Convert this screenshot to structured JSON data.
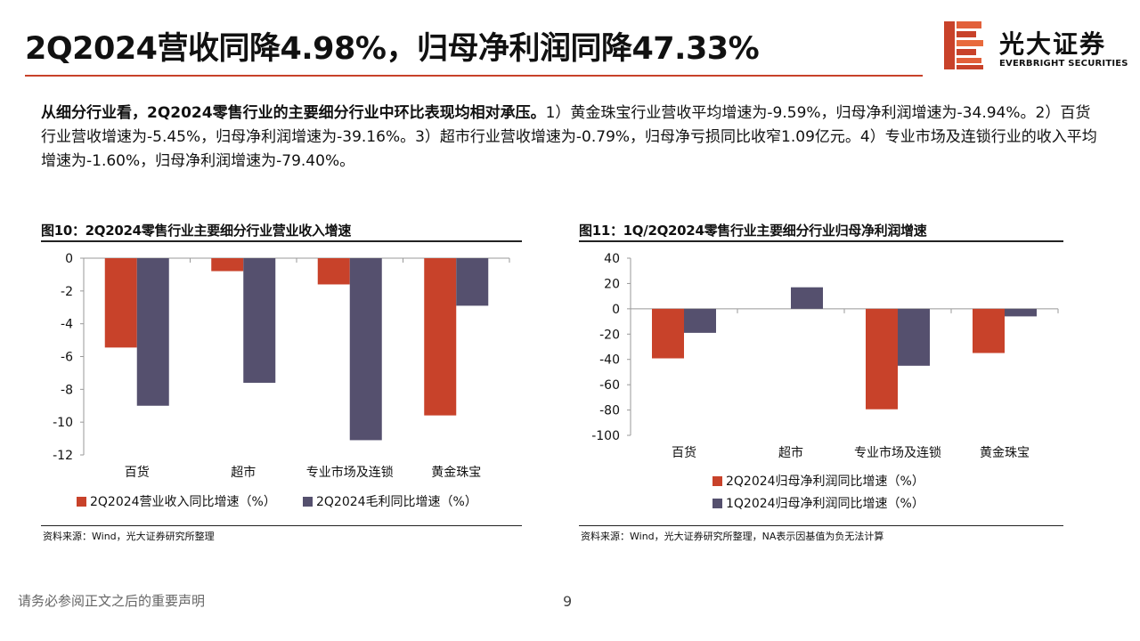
{
  "header": {
    "title": "2Q2024营收同降4.98%，归母净利润同降47.33%",
    "brand_name": "光大证券",
    "brand_sub": "EVERBRIGHT SECURITIES"
  },
  "summary": {
    "lead": "从细分行业看，2Q2024零售行业的主要细分行业中环比表现均相对承压。",
    "body": "1）黄金珠宝行业营收平均增速为-9.59%，归母净利润增速为-34.94%。2）百货行业营收增速为-5.45%，归母净利润增速为-39.16%。3）超市行业营收增速为-0.79%，归母净亏损同比收窄1.09亿元。4）专业市场及连锁行业的收入平均增速为-1.60%，归母净利润增速为-79.40%。"
  },
  "figures": {
    "fig10_title": "图10：2Q2024零售行业主要细分行业营业收入增速",
    "fig11_title": "图11：1Q/2Q2024零售行业主要细分行业归母净利润增速",
    "fig10_source": "资料来源：Wind，光大证券研究所整理",
    "fig11_source": "资料来源：Wind，光大证券研究所整理，NA表示因基值为负无法计算"
  },
  "footer": {
    "disclaimer": "请务必参阅正文之后的重要声明",
    "page_number": "9"
  },
  "colors": {
    "accent": "#c8422a",
    "series_red": "#c8422a",
    "series_purple": "#55506e"
  },
  "chart_data": [
    {
      "type": "bar",
      "categories": [
        "百货",
        "超市",
        "专业市场及连锁",
        "黄金珠宝"
      ],
      "series": [
        {
          "name": "2Q2024营业收入同比增速（%）",
          "values": [
            -5.45,
            -0.79,
            -1.6,
            -9.59
          ]
        },
        {
          "name": "2Q2024毛利同比增速（%）",
          "values": [
            -9.0,
            -7.6,
            -11.1,
            -2.9
          ]
        }
      ],
      "ylim": [
        -12,
        0
      ],
      "yticks": [
        0,
        -2,
        -4,
        -6,
        -8,
        -10,
        -12
      ],
      "grid": false,
      "legend": "bottom"
    },
    {
      "type": "bar",
      "categories": [
        "百货",
        "超市",
        "专业市场及连锁",
        "黄金珠宝"
      ],
      "series": [
        {
          "name": "2Q2024归母净利润同比增速（%）",
          "values": [
            -39.16,
            null,
            -79.4,
            -34.94
          ]
        },
        {
          "name": "1Q2024归母净利润同比增速（%）",
          "values": [
            -19,
            17,
            -45,
            -6
          ]
        }
      ],
      "ylim": [
        -100,
        40
      ],
      "yticks": [
        40,
        20,
        0,
        -20,
        -40,
        -60,
        -80,
        -100
      ],
      "grid": false,
      "legend": "bottom"
    }
  ]
}
